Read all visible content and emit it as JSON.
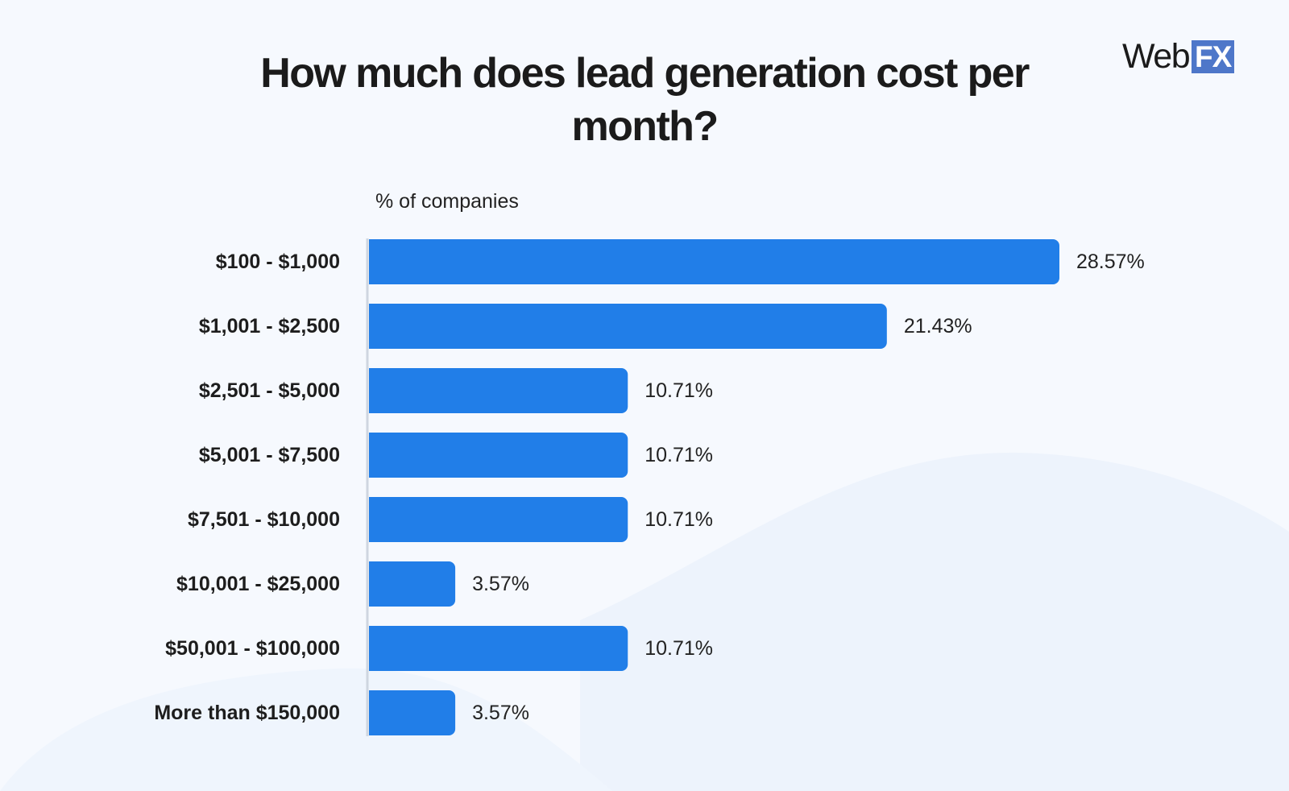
{
  "brand": {
    "logo_word": "Web",
    "logo_badge": "FX",
    "accent_color": "#4e77c9"
  },
  "colors": {
    "bar": "#217ee8",
    "axis": "#cfd6e0",
    "background": "#f6f9fe",
    "wave": "#edf3fc"
  },
  "chart_data": {
    "type": "bar",
    "orientation": "horizontal",
    "title": "How much does lead generation cost per month?",
    "xlabel": "% of companies",
    "ylabel": "",
    "categories": [
      "$100 - $1,000",
      "$1,001 - $2,500",
      "$2,501 - $5,000",
      "$5,001 - $7,500",
      "$7,501 - $10,000",
      "$10,001 - $25,000",
      "$50,001 - $100,000",
      "More than $150,000"
    ],
    "values": [
      28.57,
      21.43,
      10.71,
      10.71,
      10.71,
      3.57,
      10.71,
      3.57
    ],
    "value_labels": [
      "28.57%",
      "21.43%",
      "10.71%",
      "10.71%",
      "10.71%",
      "3.57%",
      "10.71%",
      "3.57%"
    ],
    "xlim": [
      0,
      28.57
    ],
    "grid": false,
    "legend": "none"
  }
}
